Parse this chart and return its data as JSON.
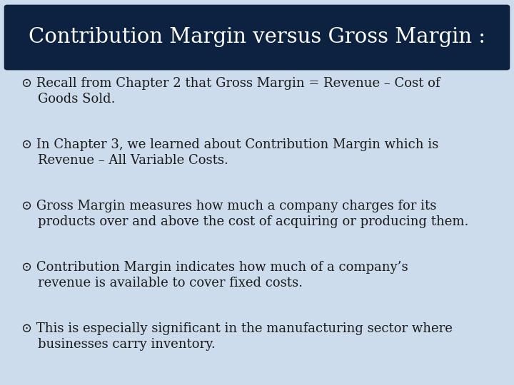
{
  "title": "Contribution Margin versus Gross Margin :",
  "title_bg_color": "#0d2240",
  "title_text_color": "#ffffff",
  "bg_color": "#cddcec",
  "text_color": "#1a1a1a",
  "bullets": [
    [
      "⊙ Recall from Chapter 2 that Gross Margin = Revenue – Cost of",
      "    Goods Sold."
    ],
    [
      "⊙ In Chapter 3, we learned about Contribution Margin which is",
      "    Revenue – All Variable Costs."
    ],
    [
      "⊙ Gross Margin measures how much a company charges for its",
      "    products over and above the cost of acquiring or producing them."
    ],
    [
      "⊙ Contribution Margin indicates how much of a company’s",
      "    revenue is available to cover fixed costs."
    ],
    [
      "⊙ This is especially significant in the manufacturing sector where",
      "    businesses carry inventory."
    ]
  ],
  "title_fontsize": 21,
  "body_fontsize": 13.0,
  "fig_width": 7.2,
  "fig_height": 5.4,
  "dpi": 100
}
